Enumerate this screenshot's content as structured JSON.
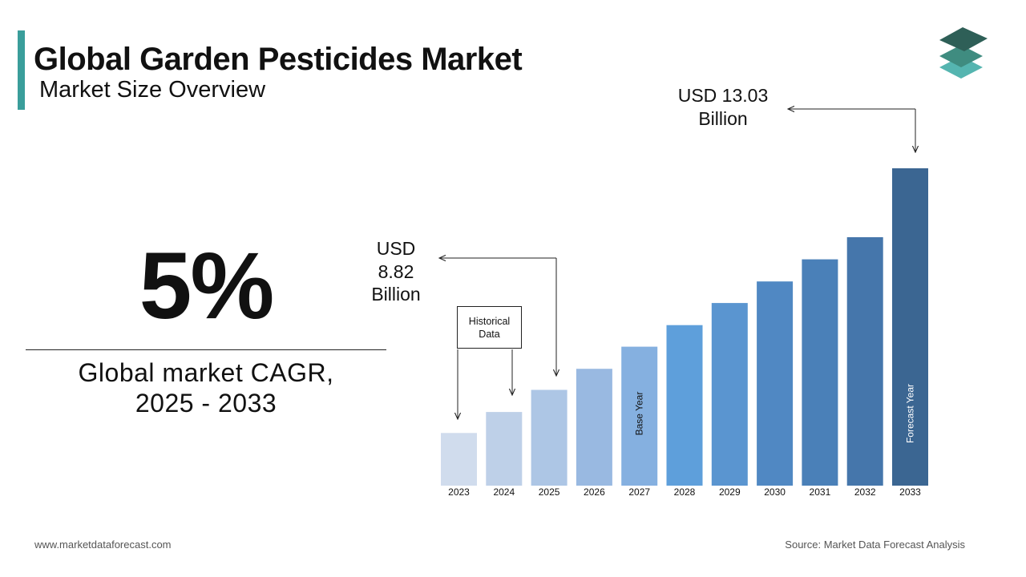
{
  "header": {
    "title": "Global Garden Pesticides Market",
    "subtitle": "Market Size Overview"
  },
  "highlight": {
    "cagr": "5%",
    "label_line1": "Global market CAGR,",
    "label_line2": "2025 - 2033"
  },
  "callouts": {
    "start": {
      "line1": "USD",
      "line2": "8.82",
      "line3": "Billion"
    },
    "end": {
      "line1": "USD 13.03",
      "line2": "Billion"
    },
    "historical_line1": "Historical",
    "historical_line2": "Data"
  },
  "footer": {
    "website": "www.marketdataforecast.com",
    "source": "Source: Market Data Forecast Analysis"
  },
  "colors": {
    "accent": "#3a9e9b",
    "logo_top": "#2e5f57",
    "logo_mid": "#3f8c80",
    "logo_bottom": "#55b5b0"
  },
  "chart_data": {
    "type": "bar",
    "categories": [
      "2023",
      "2024",
      "2025",
      "2026",
      "2027",
      "2028",
      "2029",
      "2030",
      "2031",
      "2032",
      "2033"
    ],
    "values": [
      8.0,
      8.4,
      8.82,
      9.22,
      9.64,
      10.05,
      10.47,
      10.88,
      11.3,
      11.72,
      13.03
    ],
    "colors": [
      "#d0dced",
      "#bed0e8",
      "#adc6e5",
      "#99b9e1",
      "#85b0e0",
      "#5e9fdb",
      "#5a95d0",
      "#5088c3",
      "#4a80b8",
      "#4576ab",
      "#3b6692"
    ],
    "bar_labels": {
      "2027": "Base Year",
      "2033": "Forecast Year"
    },
    "ylim": [
      7.0,
      13.03
    ],
    "grid": false,
    "legend": "none"
  }
}
